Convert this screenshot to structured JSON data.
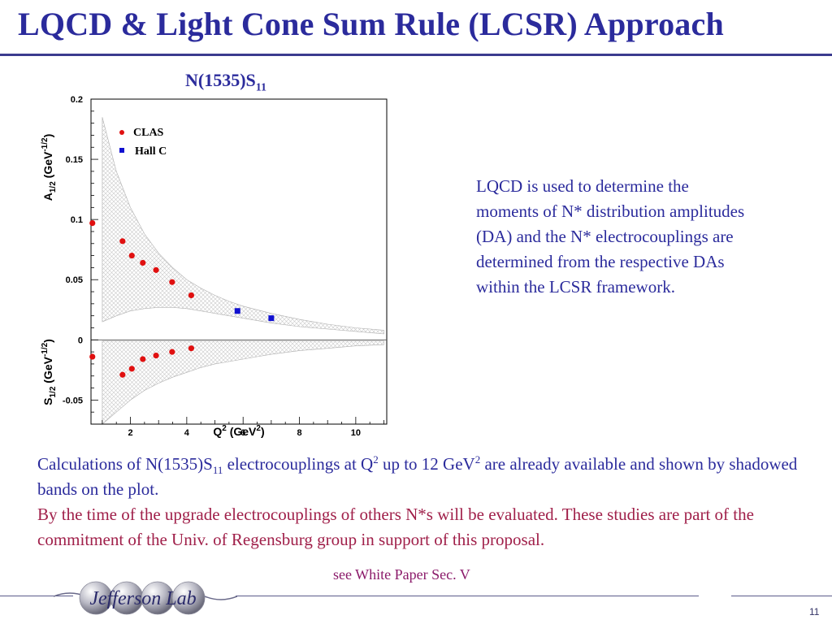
{
  "slide": {
    "title": "LQCD & Light Cone Sum Rule (LCSR) Approach",
    "page_number": "11"
  },
  "chart_title": {
    "main": "N(1535)S",
    "sub": "11"
  },
  "side_text": "LQCD is used to determine the moments of N* distribution amplitudes (DA) and the N* electrocouplings are determined from the respective DAs within the LCSR framework.",
  "bottom": {
    "line1_a": "Calculations of N(1535)S",
    "line1_sub": "11",
    "line1_b": " electrocouplings at Q",
    "line1_sup1": "2",
    "line1_c": " up to 12 GeV",
    "line1_sup2": "2",
    "line1_d": " are already available and shown by shadowed bands on the plot.",
    "line2": "By the time of the upgrade electrocouplings of others N*s will be evaluated. These studies are part of the commitment of the Univ. of Regensburg group in support of this proposal."
  },
  "see_ref": "see White Paper Sec. V",
  "logo_text": "Jefferson Lab",
  "chart_data": {
    "type": "scatter",
    "xlabel": "Q² (GeV²)",
    "ylabel_top": "A1/2 (GeV-1/2)",
    "ylabel_bottom": "S1/2 (GeV-1/2)",
    "xlim": [
      0.6,
      11.1
    ],
    "ylim": [
      -0.07,
      0.2
    ],
    "x_ticks": [
      2,
      4,
      6,
      8,
      10
    ],
    "y_ticks": [
      -0.05,
      0,
      0.05,
      0.1,
      0.15,
      0.2
    ],
    "grid": false,
    "legend_position": "top-left",
    "series": [
      {
        "name": "CLAS",
        "marker": "circle",
        "color": "#e01010",
        "points": [
          {
            "x": 0.65,
            "y": 0.097
          },
          {
            "x": 1.72,
            "y": 0.082
          },
          {
            "x": 2.05,
            "y": 0.07
          },
          {
            "x": 2.44,
            "y": 0.064
          },
          {
            "x": 2.91,
            "y": 0.058
          },
          {
            "x": 3.48,
            "y": 0.048
          },
          {
            "x": 4.16,
            "y": 0.037
          },
          {
            "x": 0.65,
            "y": -0.014
          },
          {
            "x": 1.72,
            "y": -0.029
          },
          {
            "x": 2.05,
            "y": -0.024
          },
          {
            "x": 2.44,
            "y": -0.016
          },
          {
            "x": 2.91,
            "y": -0.013
          },
          {
            "x": 3.48,
            "y": -0.01
          },
          {
            "x": 4.16,
            "y": -0.007
          }
        ]
      },
      {
        "name": "Hall C",
        "marker": "square",
        "color": "#1010d0",
        "points": [
          {
            "x": 5.8,
            "y": 0.024
          },
          {
            "x": 7.0,
            "y": 0.018
          }
        ]
      }
    ],
    "bands": [
      {
        "label": "A1/2 calculation",
        "x": [
          1.0,
          1.5,
          2.0,
          2.5,
          3.0,
          3.5,
          4.0,
          4.5,
          5.0,
          5.5,
          6.0,
          6.5,
          7.0,
          8.0,
          9.0,
          10.0,
          11.0
        ],
        "upper": [
          0.185,
          0.14,
          0.11,
          0.088,
          0.072,
          0.06,
          0.05,
          0.043,
          0.037,
          0.032,
          0.028,
          0.025,
          0.022,
          0.017,
          0.013,
          0.01,
          0.008
        ],
        "lower": [
          0.015,
          0.02,
          0.024,
          0.026,
          0.027,
          0.027,
          0.026,
          0.024,
          0.022,
          0.02,
          0.018,
          0.016,
          0.014,
          0.011,
          0.009,
          0.007,
          0.005
        ]
      },
      {
        "label": "S1/2 calculation",
        "x": [
          1.0,
          1.5,
          2.0,
          2.5,
          3.0,
          3.5,
          4.0,
          4.5,
          5.0,
          5.5,
          6.0,
          6.5,
          7.0,
          8.0,
          9.0,
          10.0,
          11.0
        ],
        "upper": [
          -0.001,
          -0.001,
          -0.001,
          -0.001,
          -0.001,
          -0.001,
          -0.001,
          -0.001,
          -0.001,
          -0.001,
          -0.001,
          -0.001,
          -0.001,
          -0.001,
          -0.001,
          -0.001,
          -0.001
        ],
        "lower": [
          -0.07,
          -0.06,
          -0.05,
          -0.042,
          -0.036,
          -0.031,
          -0.027,
          -0.023,
          -0.02,
          -0.018,
          -0.016,
          -0.014,
          -0.012,
          -0.009,
          -0.007,
          -0.005,
          -0.004
        ]
      }
    ],
    "colors": {
      "text_blue": "#2b2b9c",
      "text_red": "#a0204a",
      "ref_purple": "#8b1a6a"
    }
  }
}
